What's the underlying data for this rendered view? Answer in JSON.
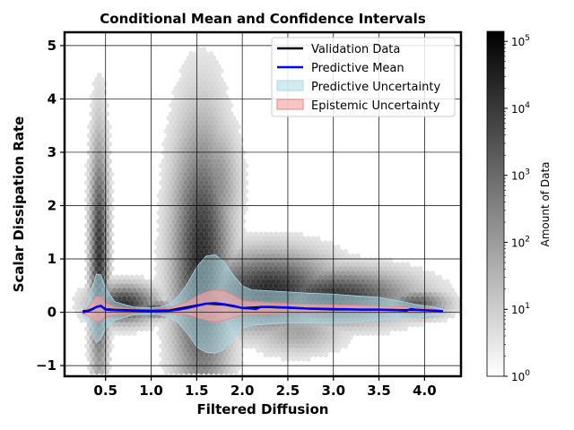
{
  "chart_data": {
    "type": "scatter",
    "title": "Conditional Mean and Confidence Intervals",
    "xlabel": "Filtered Diffusion",
    "ylabel": "Scalar Dissipation Rate",
    "xlim": [
      0.05,
      4.4
    ],
    "ylim": [
      -1.2,
      5.25
    ],
    "xticks": [
      0.5,
      1.0,
      1.5,
      2.0,
      2.5,
      3.0,
      3.5,
      4.0
    ],
    "xtick_labels": [
      "0.5",
      "1.0",
      "1.5",
      "2.0",
      "2.5",
      "3.0",
      "3.5",
      "4.0"
    ],
    "yticks": [
      -1,
      0,
      1,
      2,
      3,
      4,
      5
    ],
    "ytick_labels": [
      "−1",
      "0",
      "1",
      "2",
      "3",
      "4",
      "5"
    ],
    "grid": true,
    "legend_position": "top-right",
    "colorbar": {
      "label": "Amount of Data",
      "scale": "log",
      "ticks": [
        {
          "base": "10",
          "exp": "0"
        },
        {
          "base": "10",
          "exp": "1"
        },
        {
          "base": "10",
          "exp": "2"
        },
        {
          "base": "10",
          "exp": "3"
        },
        {
          "base": "10",
          "exp": "4"
        },
        {
          "base": "10",
          "exp": "5"
        }
      ]
    },
    "colors": {
      "validation": "#000000",
      "mean": "#0000ff",
      "predictive": "#add8e6",
      "epistemic": "#f4a6a6",
      "axes": "#000000"
    },
    "series": [
      {
        "name": "Validation Data",
        "x": [
          0.25,
          0.3,
          0.35,
          0.4,
          0.45,
          0.5,
          0.6,
          0.8,
          1.0,
          1.2,
          1.4,
          1.6,
          1.8,
          2.0,
          2.2,
          2.5,
          2.8,
          3.0,
          3.5,
          4.0,
          4.2
        ],
        "y": [
          0.02,
          0.03,
          0.06,
          0.1,
          0.12,
          0.06,
          0.05,
          0.04,
          0.03,
          0.04,
          0.1,
          0.16,
          0.14,
          0.08,
          0.1,
          0.08,
          0.06,
          0.05,
          0.05,
          0.04,
          0.02
        ]
      },
      {
        "name": "Predictive Mean",
        "x": [
          0.25,
          0.3,
          0.35,
          0.4,
          0.45,
          0.5,
          0.6,
          0.8,
          1.0,
          1.2,
          1.3,
          1.4,
          1.5,
          1.6,
          1.7,
          1.8,
          1.9,
          2.0,
          2.1,
          2.15,
          2.2,
          2.3,
          2.5,
          2.7,
          3.0,
          3.3,
          3.5,
          3.7,
          3.8,
          3.85,
          3.9,
          4.0,
          4.1,
          4.2
        ],
        "y": [
          0.0,
          0.02,
          0.05,
          0.1,
          0.12,
          0.05,
          0.04,
          0.03,
          0.02,
          0.03,
          0.05,
          0.08,
          0.12,
          0.16,
          0.17,
          0.15,
          0.12,
          0.08,
          0.07,
          0.06,
          0.1,
          0.1,
          0.09,
          0.07,
          0.06,
          0.05,
          0.05,
          0.04,
          0.03,
          0.06,
          0.05,
          0.04,
          0.03,
          0.02
        ]
      },
      {
        "name": "Predictive Uncertainty",
        "x": [
          0.25,
          0.3,
          0.35,
          0.4,
          0.45,
          0.5,
          0.6,
          0.8,
          1.0,
          1.1,
          1.2,
          1.3,
          1.4,
          1.5,
          1.6,
          1.7,
          1.8,
          1.9,
          2.0,
          2.1,
          2.3,
          2.5,
          2.7,
          3.0,
          3.3,
          3.5,
          3.7,
          3.9,
          4.0,
          4.1,
          4.2
        ],
        "upper": [
          0.05,
          0.15,
          0.45,
          0.72,
          0.7,
          0.45,
          0.2,
          0.1,
          0.08,
          0.1,
          0.15,
          0.3,
          0.55,
          0.85,
          1.05,
          1.08,
          0.95,
          0.7,
          0.5,
          0.42,
          0.4,
          0.38,
          0.36,
          0.34,
          0.3,
          0.28,
          0.22,
          0.15,
          0.12,
          0.1,
          0.06
        ],
        "lower": [
          -0.05,
          -0.15,
          -0.35,
          -0.57,
          -0.5,
          -0.3,
          -0.15,
          -0.05,
          -0.03,
          -0.05,
          -0.1,
          -0.2,
          -0.4,
          -0.65,
          -0.75,
          -0.77,
          -0.7,
          -0.5,
          -0.3,
          -0.25,
          -0.22,
          -0.2,
          -0.2,
          -0.2,
          -0.18,
          -0.15,
          -0.12,
          -0.1,
          -0.08,
          -0.06,
          -0.03
        ]
      },
      {
        "name": "Epistemic Uncertainty",
        "x": [
          0.25,
          0.3,
          0.35,
          0.4,
          0.45,
          0.5,
          0.6,
          0.8,
          1.0,
          1.2,
          1.4,
          1.5,
          1.6,
          1.7,
          1.8,
          1.9,
          2.0,
          2.1,
          2.3,
          2.5,
          3.0,
          3.5,
          4.0,
          4.2
        ],
        "upper": [
          0.03,
          0.08,
          0.18,
          0.3,
          0.28,
          0.18,
          0.1,
          0.06,
          0.05,
          0.08,
          0.2,
          0.3,
          0.38,
          0.42,
          0.4,
          0.32,
          0.22,
          0.2,
          0.18,
          0.16,
          0.14,
          0.12,
          0.08,
          0.04
        ],
        "lower": [
          -0.03,
          -0.06,
          -0.12,
          -0.18,
          -0.15,
          -0.08,
          -0.05,
          -0.02,
          -0.01,
          -0.02,
          -0.05,
          -0.1,
          -0.15,
          -0.18,
          -0.15,
          -0.1,
          -0.05,
          -0.04,
          -0.03,
          -0.02,
          -0.02,
          -0.01,
          0.0,
          0.0
        ]
      }
    ],
    "density_regions": [
      {
        "x": 0.43,
        "y": 1.0,
        "sx": 0.07,
        "sy": 1.6,
        "level": 4.2
      },
      {
        "x": 0.7,
        "y": 0.15,
        "sx": 0.25,
        "sy": 0.25,
        "level": 4.3
      },
      {
        "x": 1.05,
        "y": 0.05,
        "sx": 0.15,
        "sy": 0.12,
        "level": 3.6
      },
      {
        "x": 1.55,
        "y": 0.9,
        "sx": 0.22,
        "sy": 1.8,
        "level": 4.4
      },
      {
        "x": 1.7,
        "y": 2.3,
        "sx": 0.18,
        "sy": 0.9,
        "level": 2.4
      },
      {
        "x": 2.3,
        "y": 0.4,
        "sx": 0.5,
        "sy": 0.5,
        "level": 4.5
      },
      {
        "x": 3.0,
        "y": 0.3,
        "sx": 0.6,
        "sy": 0.35,
        "level": 4.2
      },
      {
        "x": 3.9,
        "y": 0.15,
        "sx": 0.25,
        "sy": 0.18,
        "level": 3.4
      },
      {
        "x": 2.6,
        "y": -0.35,
        "sx": 0.35,
        "sy": 0.3,
        "level": 1.8
      }
    ]
  }
}
